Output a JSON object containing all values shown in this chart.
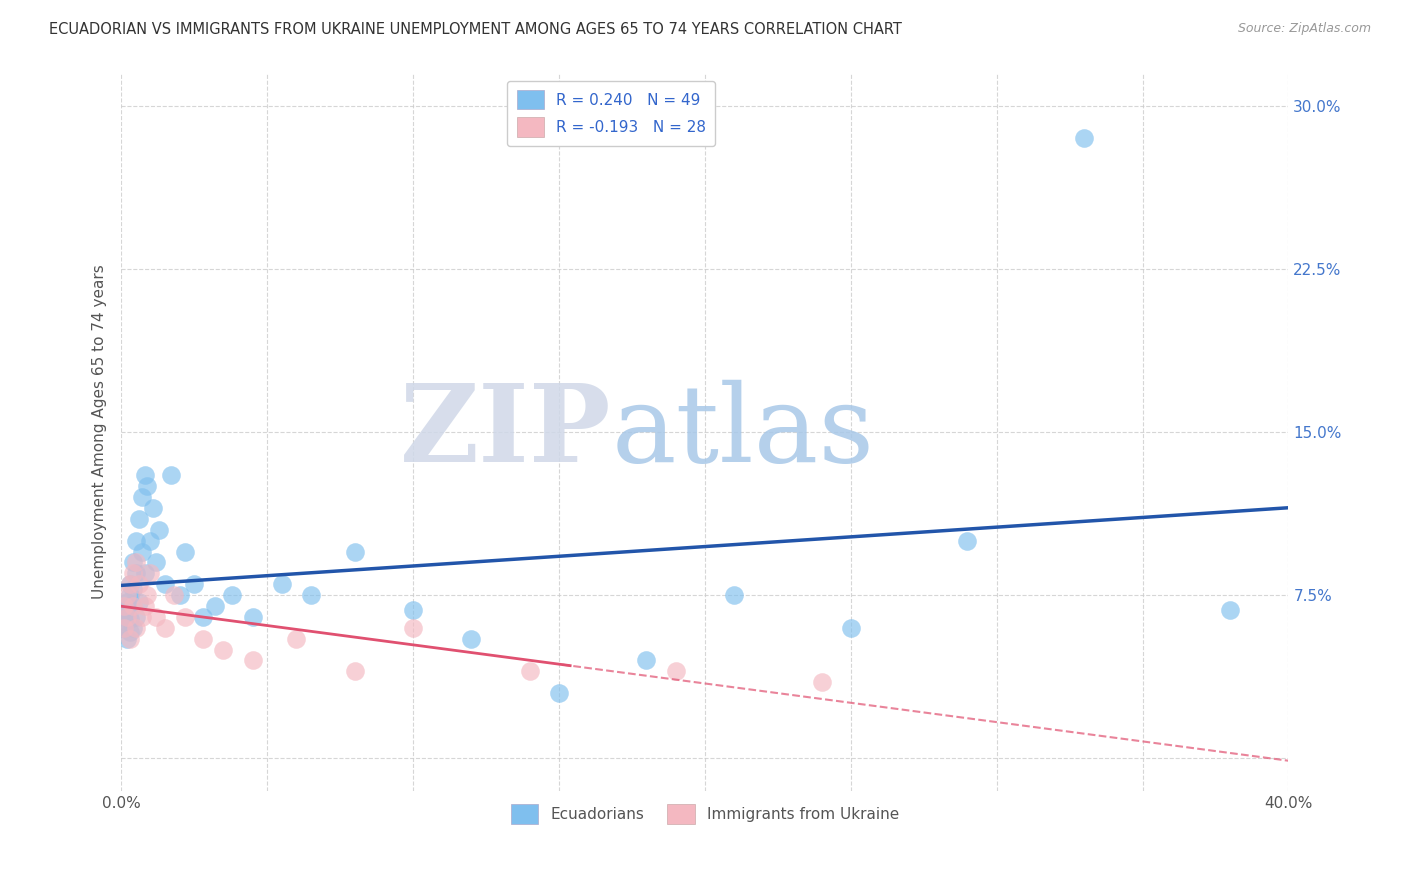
{
  "title": "ECUADORIAN VS IMMIGRANTS FROM UKRAINE UNEMPLOYMENT AMONG AGES 65 TO 74 YEARS CORRELATION CHART",
  "source": "Source: ZipAtlas.com",
  "ylabel": "Unemployment Among Ages 65 to 74 years",
  "ytick_positions": [
    0.0,
    0.075,
    0.15,
    0.225,
    0.3
  ],
  "ytick_labels": [
    "",
    "7.5%",
    "15.0%",
    "22.5%",
    "30.0%"
  ],
  "xlim": [
    0.0,
    0.4
  ],
  "ylim": [
    -0.015,
    0.315
  ],
  "legend_entries": [
    {
      "label": "R = 0.240   N = 49",
      "color": "#aec6e8"
    },
    {
      "label": "R = -0.193   N = 28",
      "color": "#f4b8c1"
    }
  ],
  "legend_labels_bottom": [
    "Ecuadorians",
    "Immigrants from Ukraine"
  ],
  "ecuadorians": {
    "x": [
      0.001,
      0.001,
      0.001,
      0.002,
      0.002,
      0.002,
      0.002,
      0.003,
      0.003,
      0.003,
      0.003,
      0.004,
      0.004,
      0.004,
      0.005,
      0.005,
      0.005,
      0.006,
      0.006,
      0.007,
      0.007,
      0.008,
      0.008,
      0.009,
      0.01,
      0.011,
      0.012,
      0.013,
      0.015,
      0.017,
      0.02,
      0.022,
      0.025,
      0.028,
      0.032,
      0.038,
      0.045,
      0.055,
      0.065,
      0.08,
      0.1,
      0.12,
      0.15,
      0.18,
      0.21,
      0.25,
      0.29,
      0.33,
      0.38
    ],
    "y": [
      0.06,
      0.063,
      0.068,
      0.055,
      0.065,
      0.07,
      0.072,
      0.058,
      0.064,
      0.075,
      0.08,
      0.06,
      0.078,
      0.09,
      0.065,
      0.085,
      0.1,
      0.072,
      0.11,
      0.095,
      0.12,
      0.085,
      0.13,
      0.125,
      0.1,
      0.115,
      0.09,
      0.105,
      0.08,
      0.13,
      0.075,
      0.095,
      0.08,
      0.065,
      0.07,
      0.075,
      0.065,
      0.08,
      0.075,
      0.095,
      0.068,
      0.055,
      0.03,
      0.045,
      0.075,
      0.06,
      0.1,
      0.285,
      0.068
    ],
    "color": "#7fbfee",
    "line_color": "#2255aa"
  },
  "ukraine": {
    "x": [
      0.001,
      0.001,
      0.002,
      0.002,
      0.003,
      0.003,
      0.004,
      0.004,
      0.005,
      0.005,
      0.006,
      0.007,
      0.008,
      0.009,
      0.01,
      0.012,
      0.015,
      0.018,
      0.022,
      0.028,
      0.035,
      0.045,
      0.06,
      0.08,
      0.1,
      0.14,
      0.19,
      0.24
    ],
    "y": [
      0.06,
      0.07,
      0.065,
      0.075,
      0.055,
      0.08,
      0.07,
      0.085,
      0.06,
      0.09,
      0.08,
      0.065,
      0.07,
      0.075,
      0.085,
      0.065,
      0.06,
      0.075,
      0.065,
      0.055,
      0.05,
      0.045,
      0.055,
      0.04,
      0.06,
      0.04,
      0.04,
      0.035
    ],
    "color": "#f4b8c1",
    "line_color": "#e05070"
  },
  "watermark_zip": "ZIP",
  "watermark_atlas": "atlas",
  "background_color": "#ffffff",
  "grid_color": "#cccccc"
}
